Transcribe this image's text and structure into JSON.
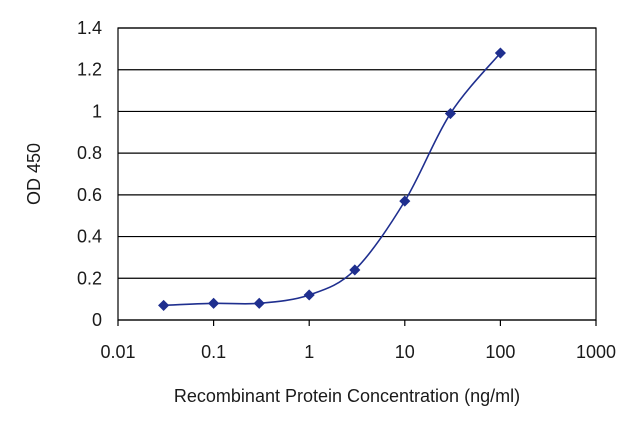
{
  "chart_data": {
    "type": "scatter",
    "xlabel": "Recombinant Protein Concentration (ng/ml)",
    "ylabel": "OD 450",
    "x_scale": "log",
    "xlim": [
      0.01,
      1000
    ],
    "ylim": [
      0,
      1.4
    ],
    "x_ticks": [
      "0.01",
      "0.1",
      "1",
      "10",
      "100",
      "1000"
    ],
    "y_ticks": [
      "0",
      "0.2",
      "0.4",
      "0.6",
      "0.8",
      "1",
      "1.2",
      "1.4"
    ],
    "grid": "horizontal",
    "legend": "none",
    "colors": {
      "series": "#1f2f8f",
      "grid": "#000000",
      "frame": "#000000"
    },
    "series": [
      {
        "x": [
          0.03,
          0.1,
          0.3,
          1,
          3,
          10,
          30,
          100
        ],
        "y": [
          0.07,
          0.08,
          0.08,
          0.12,
          0.24,
          0.57,
          0.99,
          1.28
        ]
      }
    ]
  }
}
